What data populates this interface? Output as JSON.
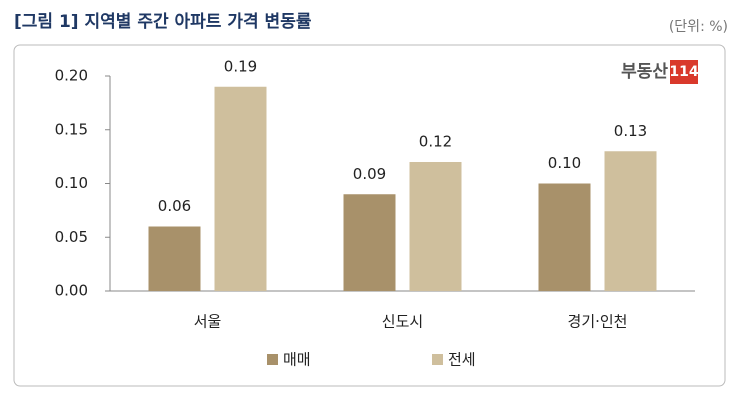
{
  "chart_data": {
    "type": "bar",
    "title": "[그림 1] 지역별 주간 아파트 가격 변동률",
    "unit": "(단위: %)",
    "logo": {
      "name": "부동산",
      "number": "114"
    },
    "categories": [
      "서울",
      "신도시",
      "경기·인천"
    ],
    "series": [
      {
        "name": "매매",
        "color": "#a8916a",
        "values": [
          0.06,
          0.09,
          0.1
        ],
        "value_labels": [
          "0.06",
          "0.09",
          "0.10"
        ]
      },
      {
        "name": "전세",
        "color": "#cfbf9d",
        "values": [
          0.19,
          0.12,
          0.13
        ],
        "value_labels": [
          "0.19",
          "0.12",
          "0.13"
        ]
      }
    ],
    "ylim": [
      0,
      0.2
    ],
    "yticks": [
      {
        "value": 0,
        "label": "0.00"
      },
      {
        "value": 0.05,
        "label": "0.05"
      },
      {
        "value": 0.1,
        "label": "0.10"
      },
      {
        "value": 0.15,
        "label": "0.15"
      },
      {
        "value": 0.2,
        "label": "0.20"
      }
    ],
    "grid": false
  }
}
